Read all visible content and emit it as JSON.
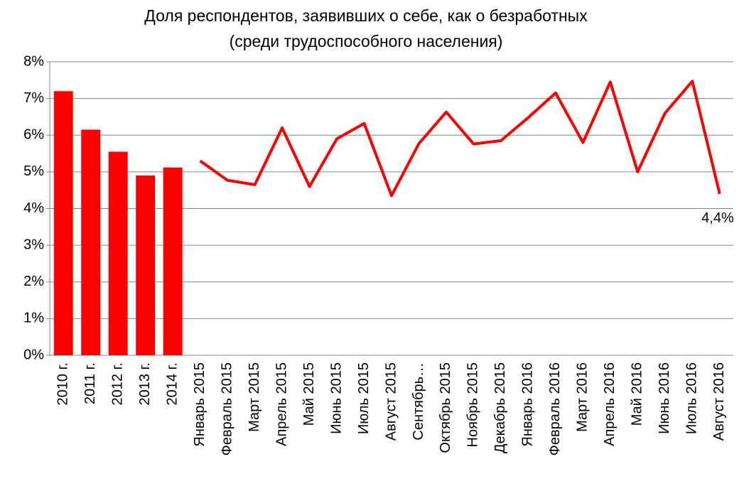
{
  "chart_data": {
    "type": "bar",
    "title": [
      "Доля респондентов, заявивших о себе, как о безработных",
      "(среди трудоспособного населения)"
    ],
    "categories": [
      "2010 г.",
      "2011 г.",
      "2012 г.",
      "2013 г.",
      "2014 г.",
      "Январь 2015",
      "Февраль 2015",
      "Март 2015",
      "Апрель 2015",
      "Май 2015",
      "Июнь 2015",
      "Июль 2015",
      "Август 2015",
      "Сентябрь…",
      "Октябрь 2015",
      "Ноябрь 2015",
      "Декабрь 2015",
      "Январь 2016",
      "Февраль 2016",
      "Март 2016",
      "Апрель 2016",
      "Май 2016",
      "Июнь 2016",
      "Июль 2016",
      "Август 2016"
    ],
    "series": [
      {
        "type": "bar",
        "color": "#ff0000",
        "values": [
          7.2,
          6.15,
          5.55,
          4.9,
          5.12,
          null,
          null,
          null,
          null,
          null,
          null,
          null,
          null,
          null,
          null,
          null,
          null,
          null,
          null,
          null,
          null,
          null,
          null,
          null,
          null
        ]
      },
      {
        "type": "line",
        "color": "#ff0000",
        "values": [
          null,
          null,
          null,
          null,
          null,
          5.3,
          4.77,
          4.65,
          6.2,
          4.6,
          5.9,
          6.32,
          4.35,
          5.77,
          6.63,
          5.76,
          5.85,
          6.48,
          7.15,
          5.8,
          7.45,
          5.0,
          6.6,
          7.47,
          4.4
        ],
        "value_labels": [
          null,
          null,
          null,
          null,
          null,
          null,
          null,
          null,
          null,
          null,
          null,
          null,
          null,
          null,
          null,
          null,
          null,
          null,
          null,
          null,
          null,
          null,
          null,
          null,
          "4,4%"
        ]
      }
    ],
    "ylim": [
      0,
      8
    ],
    "yticks": [
      {
        "value": 0,
        "label": "0%"
      },
      {
        "value": 1,
        "label": "1%"
      },
      {
        "value": 2,
        "label": "2%"
      },
      {
        "value": 3,
        "label": "3%"
      },
      {
        "value": 4,
        "label": "4%"
      },
      {
        "value": 5,
        "label": "5%"
      },
      {
        "value": 6,
        "label": "6%"
      },
      {
        "value": 7,
        "label": "7%"
      },
      {
        "value": 8,
        "label": "8%"
      }
    ],
    "grid": true
  }
}
